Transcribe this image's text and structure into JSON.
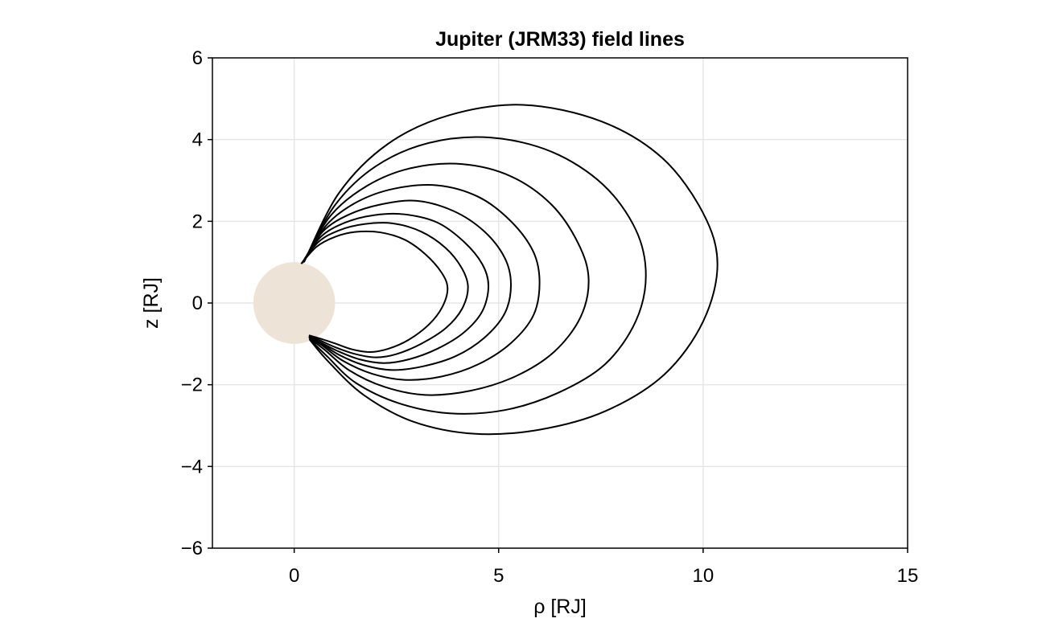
{
  "chart_data": {
    "type": "line",
    "title": "Jupiter (JRM33) field lines",
    "xlabel": "ρ [RJ]",
    "ylabel": "z [RJ]",
    "xlim": [
      -2,
      15
    ],
    "ylim": [
      -6,
      6
    ],
    "xticks": [
      0,
      5,
      10,
      15
    ],
    "xtick_labels": [
      "0",
      "5",
      "10",
      "15"
    ],
    "yticks": [
      -6,
      -4,
      -2,
      0,
      2,
      4,
      6
    ],
    "ytick_labels": [
      "−6",
      "−4",
      "−2",
      "0",
      "2",
      "4",
      "6"
    ],
    "grid": true,
    "legend": "none",
    "planet": {
      "center": [
        0,
        0
      ],
      "radius": 1,
      "color": "#ede3d6"
    },
    "line_color": "#000000",
    "series": [
      {
        "x": [
          0.17,
          0.55,
          1.0,
          1.5,
          2.1,
          2.7,
          3.2,
          3.6,
          3.75,
          3.62,
          3.3,
          2.8,
          2.3,
          1.85,
          1.4,
          1.0,
          0.6,
          0.36
        ],
        "y": [
          0.96,
          1.38,
          1.62,
          1.74,
          1.73,
          1.55,
          1.2,
          0.75,
          0.36,
          -0.1,
          -0.52,
          -0.9,
          -1.12,
          -1.2,
          -1.13,
          -0.99,
          -0.86,
          -0.79
        ]
      },
      {
        "x": [
          0.18,
          0.6,
          1.1,
          1.7,
          2.4,
          3.1,
          3.7,
          4.1,
          4.25,
          4.1,
          3.7,
          3.1,
          2.5,
          2.0,
          1.5,
          1.0,
          0.6,
          0.36
        ],
        "y": [
          0.97,
          1.5,
          1.78,
          1.93,
          1.95,
          1.75,
          1.35,
          0.85,
          0.38,
          -0.15,
          -0.62,
          -1.0,
          -1.25,
          -1.33,
          -1.25,
          -1.08,
          -0.9,
          -0.8
        ]
      },
      {
        "x": [
          0.19,
          0.65,
          1.25,
          1.95,
          2.7,
          3.5,
          4.15,
          4.6,
          4.75,
          4.6,
          4.15,
          3.5,
          2.8,
          2.2,
          1.6,
          1.05,
          0.6,
          0.36
        ],
        "y": [
          0.98,
          1.62,
          1.97,
          2.15,
          2.17,
          1.97,
          1.5,
          0.95,
          0.42,
          -0.2,
          -0.72,
          -1.12,
          -1.38,
          -1.47,
          -1.38,
          -1.17,
          -0.94,
          -0.82
        ]
      },
      {
        "x": [
          0.2,
          0.7,
          1.35,
          2.15,
          3.0,
          3.9,
          4.65,
          5.15,
          5.3,
          5.15,
          4.65,
          3.95,
          3.15,
          2.4,
          1.7,
          1.1,
          0.65,
          0.36
        ],
        "y": [
          0.98,
          1.75,
          2.17,
          2.42,
          2.5,
          2.25,
          1.75,
          1.1,
          0.45,
          -0.25,
          -0.85,
          -1.3,
          -1.55,
          -1.64,
          -1.52,
          -1.27,
          -0.98,
          -0.83
        ]
      },
      {
        "x": [
          0.21,
          0.8,
          1.55,
          2.45,
          3.5,
          4.5,
          5.3,
          5.85,
          6.0,
          5.85,
          5.3,
          4.5,
          3.6,
          2.7,
          1.9,
          1.2,
          0.7,
          0.36
        ],
        "y": [
          0.99,
          1.92,
          2.48,
          2.8,
          2.88,
          2.6,
          2.0,
          1.25,
          0.5,
          -0.3,
          -0.98,
          -1.5,
          -1.8,
          -1.88,
          -1.73,
          -1.42,
          -1.05,
          -0.84
        ]
      },
      {
        "x": [
          0.22,
          0.9,
          1.8,
          2.85,
          4.1,
          5.3,
          6.3,
          6.95,
          7.2,
          7.0,
          6.35,
          5.4,
          4.3,
          3.2,
          2.2,
          1.35,
          0.75,
          0.37
        ],
        "y": [
          1.0,
          2.15,
          2.88,
          3.3,
          3.4,
          3.1,
          2.4,
          1.45,
          0.58,
          -0.35,
          -1.2,
          -1.8,
          -2.15,
          -2.25,
          -2.05,
          -1.65,
          -1.15,
          -0.86
        ]
      },
      {
        "x": [
          0.23,
          1.0,
          2.0,
          3.3,
          4.8,
          6.3,
          7.55,
          8.35,
          8.6,
          8.35,
          7.6,
          6.45,
          5.15,
          3.8,
          2.55,
          1.5,
          0.8,
          0.37
        ],
        "y": [
          1.0,
          2.4,
          3.35,
          3.92,
          4.05,
          3.7,
          2.9,
          1.8,
          0.68,
          -0.45,
          -1.5,
          -2.2,
          -2.62,
          -2.7,
          -2.45,
          -1.95,
          -1.3,
          -0.88
        ]
      },
      {
        "x": [
          0.24,
          1.1,
          2.3,
          3.8,
          5.6,
          7.5,
          9.0,
          10.0,
          10.35,
          10.0,
          9.05,
          7.6,
          6.0,
          4.4,
          2.9,
          1.7,
          0.85,
          0.38
        ],
        "y": [
          1.0,
          2.7,
          3.9,
          4.6,
          4.85,
          4.45,
          3.55,
          2.2,
          0.95,
          -0.45,
          -1.75,
          -2.65,
          -3.1,
          -3.2,
          -2.9,
          -2.25,
          -1.45,
          -0.9
        ]
      }
    ]
  }
}
